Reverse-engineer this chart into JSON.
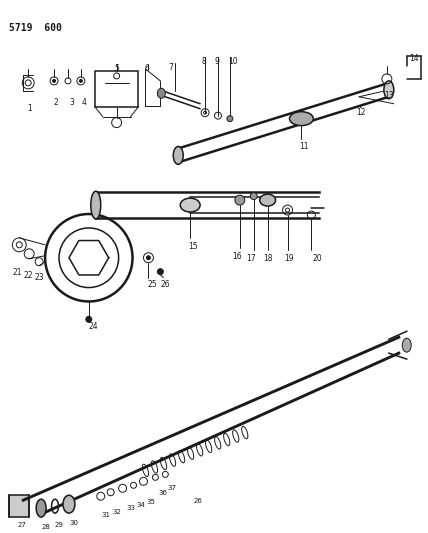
{
  "title": "5719  600",
  "bg_color": "#ffffff",
  "line_color": "#1a1a1a",
  "label_color": "#1a1a1a",
  "figsize": [
    4.28,
    5.33
  ],
  "dpi": 100,
  "top_labels": [
    [
      "1",
      28,
      103
    ],
    [
      "2",
      55,
      97
    ],
    [
      "3",
      71,
      97
    ],
    [
      "4",
      83,
      97
    ],
    [
      "5",
      116,
      63
    ],
    [
      "6",
      147,
      63
    ],
    [
      "7",
      170,
      62
    ],
    [
      "8",
      204,
      56
    ],
    [
      "9",
      217,
      56
    ],
    [
      "10",
      233,
      56
    ],
    [
      "11",
      305,
      142
    ],
    [
      "12",
      362,
      107
    ],
    [
      "13",
      390,
      90
    ],
    [
      "14",
      415,
      53
    ]
  ],
  "mid_labels": [
    [
      "15",
      193,
      242
    ],
    [
      "16",
      237,
      252
    ],
    [
      "17",
      251,
      254
    ],
    [
      "18",
      268,
      254
    ],
    [
      "19",
      290,
      254
    ],
    [
      "20",
      318,
      254
    ],
    [
      "21",
      16,
      268
    ],
    [
      "22",
      27,
      271
    ],
    [
      "23",
      38,
      273
    ],
    [
      "24",
      93,
      323
    ],
    [
      "25",
      152,
      280
    ],
    [
      "26",
      165,
      280
    ]
  ],
  "bot_labels": [
    [
      "27",
      21,
      524
    ],
    [
      "28",
      45,
      526
    ],
    [
      "29",
      58,
      524
    ],
    [
      "30",
      73,
      522
    ],
    [
      "31",
      105,
      514
    ],
    [
      "32",
      116,
      511
    ],
    [
      "33",
      130,
      507
    ],
    [
      "34",
      140,
      504
    ],
    [
      "35",
      150,
      501
    ],
    [
      "36",
      163,
      492
    ],
    [
      "37",
      172,
      487
    ],
    [
      "26",
      198,
      500
    ]
  ]
}
